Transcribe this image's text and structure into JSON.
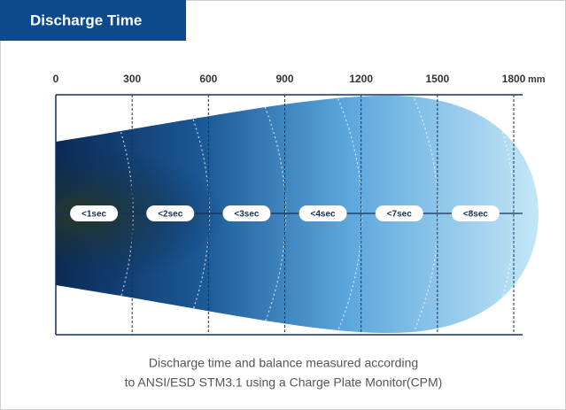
{
  "header": {
    "title": "Discharge Time"
  },
  "axis": {
    "xlim": [
      0,
      1800
    ],
    "xticks": [
      0,
      300,
      600,
      900,
      1200,
      1500,
      1800
    ],
    "unit": "mm"
  },
  "zones": [
    "<1sec",
    "<2sec",
    "<3sec",
    "<4sec",
    "<7sec",
    "<8sec"
  ],
  "caption": [
    "Discharge time and balance measured according",
    "to ANSI/ESD STM3.1 using a Charge Plate Monitor(CPM)"
  ]
}
